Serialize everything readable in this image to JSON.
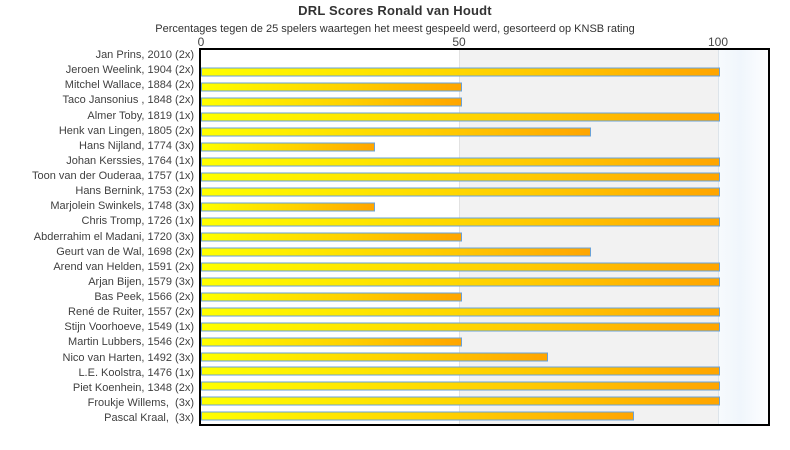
{
  "header": {
    "title": "DRL Scores Ronald van Houdt",
    "subtitle": "Percentages tegen de 25 spelers waartegen het meest gespeeld werd, gesorteerd op KNSB rating"
  },
  "axis": {
    "tick_0": "0",
    "tick_50": "50",
    "tick_100": "100"
  },
  "colors": {
    "bar_gradient_start": "#ffff00",
    "bar_gradient_end": "#ffa500",
    "bar_border": "#6aa2d8",
    "band_mid": "#f2f2f2",
    "plot_border": "#000000"
  },
  "chart_data": {
    "type": "bar",
    "orientation": "horizontal",
    "title": "DRL Scores Ronald van Houdt",
    "subtitle": "Percentages tegen de 25 spelers waartegen het meest gespeeld werd, gesorteerd op KNSB rating",
    "xlabel": "",
    "ylabel": "",
    "xlim": [
      0,
      110
    ],
    "xticks": [
      0,
      50,
      100
    ],
    "grid": false,
    "legend": false,
    "categories": [
      "Jan Prins, 2010 (2x)",
      "Jeroen Weelink, 1904 (2x)",
      "Mitchel Wallace, 1884 (2x)",
      "Taco Jansonius , 1848 (2x)",
      "Almer Toby, 1819 (1x)",
      "Henk van Lingen, 1805 (2x)",
      "Hans Nijland, 1774 (3x)",
      "Johan Kerssies, 1764 (1x)",
      "Toon van der Ouderaa, 1757 (1x)",
      "Hans Bernink, 1753 (2x)",
      "Marjolein Swinkels, 1748 (3x)",
      "Chris Tromp, 1726 (1x)",
      "Abderrahim el Madani, 1720 (3x)",
      "Geurt van de Wal, 1698 (2x)",
      "Arend van Helden, 1591 (2x)",
      "Arjan Bijen, 1579 (3x)",
      "Bas Peek, 1566 (2x)",
      "René de Ruiter, 1557 (2x)",
      "Stijn Voorhoeve, 1549 (1x)",
      "Martin Lubbers, 1546 (2x)",
      "Nico van Harten, 1492 (3x)",
      "L.E. Koolstra, 1476 (1x)",
      "Piet Koenhein, 1348 (2x)",
      "Froukje Willems,  (3x)",
      "Pascal Kraal,  (3x)"
    ],
    "values": [
      0,
      100,
      50,
      50,
      100,
      75,
      33.3,
      100,
      100,
      100,
      33.3,
      100,
      50,
      75,
      100,
      100,
      50,
      100,
      100,
      50,
      66.7,
      100,
      100,
      100,
      83.3
    ]
  }
}
